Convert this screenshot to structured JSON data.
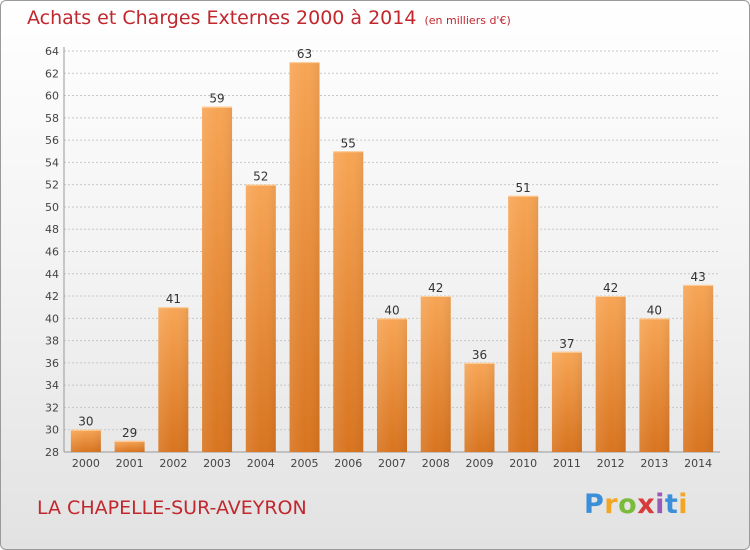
{
  "title": "Achats et Charges Externes 2000 à 2014",
  "unit": "(en milliers d'€)",
  "place": "LA CHAPELLE-SUR-AVEYRON",
  "brand": "Proxiti",
  "colors": {
    "bar_top": "#f7a555",
    "bar_bottom": "#d8741f",
    "title": "#c1272d",
    "grid": "#c8c8c8"
  },
  "chart_data": {
    "type": "bar",
    "categories": [
      "2000",
      "2001",
      "2002",
      "2003",
      "2004",
      "2005",
      "2006",
      "2007",
      "2008",
      "2009",
      "2010",
      "2011",
      "2012",
      "2013",
      "2014"
    ],
    "values": [
      30,
      29,
      41,
      59,
      52,
      63,
      55,
      40,
      42,
      36,
      51,
      37,
      42,
      40,
      43
    ],
    "title": "Achats et Charges Externes 2000 à 2014",
    "xlabel": "",
    "ylabel": "",
    "ylim": [
      28,
      64
    ],
    "yticks": [
      28,
      30,
      32,
      34,
      36,
      38,
      40,
      42,
      44,
      46,
      48,
      50,
      52,
      54,
      56,
      58,
      60,
      62,
      64
    ],
    "grid": true,
    "data_labels": true
  }
}
